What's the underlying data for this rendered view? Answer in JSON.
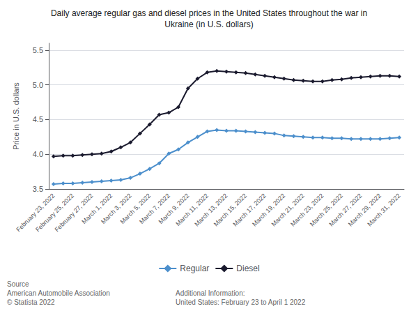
{
  "chart_data": {
    "type": "line",
    "title": "Daily average regular gas and diesel prices in the United States throughout the war in\nUkraine (in U.S. dollars)",
    "ylabel": "Price in U.S. dollars",
    "categories": [
      "February 23, 2022",
      null,
      "February 25, 2022",
      null,
      "February 27, 2022",
      null,
      "March 1, 2022",
      null,
      "March 3, 2022",
      null,
      "March 5, 2022",
      null,
      "March 7, 2022",
      null,
      "March 9, 2022",
      null,
      "March 11, 2022",
      null,
      "March 13, 2022",
      null,
      "March 15, 2022",
      null,
      "March 17, 2022",
      null,
      "March 19, 2022",
      null,
      "March 21, 2022",
      null,
      "March 23, 2022",
      null,
      "March 25, 2022",
      null,
      "March 27, 2022",
      null,
      "March 29, 2022",
      null,
      "March 31, 2022"
    ],
    "series": [
      {
        "name": "Regular",
        "color": "#4c8fcc",
        "marker": "diamond",
        "values": [
          3.57,
          3.58,
          3.58,
          3.59,
          3.6,
          3.61,
          3.62,
          3.63,
          3.66,
          3.72,
          3.79,
          3.87,
          4.01,
          4.07,
          4.17,
          4.25,
          4.33,
          4.35,
          4.34,
          4.34,
          4.33,
          4.32,
          4.31,
          4.3,
          4.27,
          4.26,
          4.25,
          4.24,
          4.24,
          4.23,
          4.23,
          4.22,
          4.22,
          4.22,
          4.22,
          4.23,
          4.24
        ]
      },
      {
        "name": "Diesel",
        "color": "#1a1a2e",
        "marker": "diamond",
        "values": [
          3.97,
          3.98,
          3.98,
          3.99,
          4.0,
          4.01,
          4.04,
          4.1,
          4.17,
          4.3,
          4.43,
          4.57,
          4.6,
          4.68,
          4.95,
          5.09,
          5.18,
          5.2,
          5.19,
          5.18,
          5.17,
          5.15,
          5.13,
          5.11,
          5.09,
          5.07,
          5.06,
          5.05,
          5.05,
          5.07,
          5.08,
          5.1,
          5.11,
          5.12,
          5.13,
          5.13,
          5.12
        ]
      }
    ],
    "ylim": [
      3.5,
      5.6
    ],
    "yticks": [
      3.5,
      {
        "value": 4.0,
        "label": "4.0"
      },
      4.5,
      {
        "value": 5.0,
        "label": "5.0"
      },
      5.5
    ],
    "grid": true,
    "legend": "bottom",
    "annotations": [
      "Source\nAmerican Automobile Association\n© Statista 2022",
      "Additional Information:\nUnited States: February 23 to April 1 2022"
    ]
  }
}
